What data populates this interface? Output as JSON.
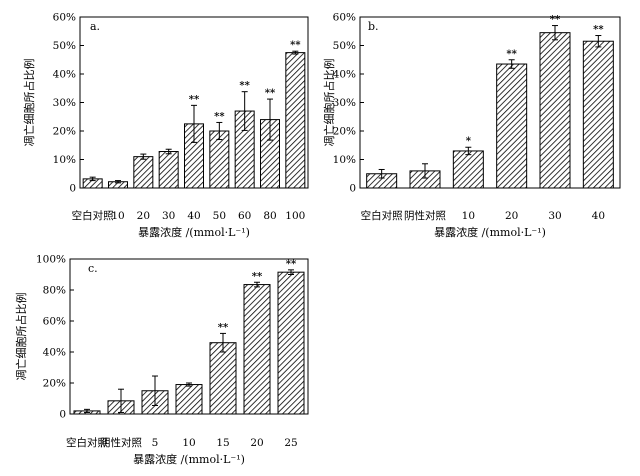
{
  "chart_data": [
    {
      "type": "bar",
      "panel_label": "a.",
      "categories": [
        "空白对照",
        "10",
        "20",
        "30",
        "40",
        "50",
        "60",
        "80",
        "100"
      ],
      "values": [
        3.2,
        2.2,
        11,
        12.8,
        22.5,
        20,
        27,
        24,
        47.5
      ],
      "errors": [
        0.6,
        0.4,
        0.9,
        0.8,
        6.5,
        3,
        6.8,
        7.2,
        0.5
      ],
      "significance": [
        "",
        "",
        "",
        "",
        "**",
        "**",
        "**",
        "**",
        "**"
      ],
      "yticks": [
        "0",
        "10%",
        "20%",
        "30%",
        "40%",
        "50%",
        "60%"
      ],
      "ylim": [
        0,
        60
      ],
      "ylabel": "凋亡细胞所占比例",
      "xlabel": "暴露浓度 /(mmol·L⁻¹)",
      "hatch": "diagonal"
    },
    {
      "type": "bar",
      "panel_label": "b.",
      "categories": [
        "空白对照",
        "阴性对照",
        "10",
        "20",
        "30",
        "40"
      ],
      "values": [
        5,
        6,
        13,
        43.5,
        54.5,
        51.5
      ],
      "errors": [
        1.5,
        2.5,
        1.3,
        1.5,
        2.5,
        2
      ],
      "significance": [
        "",
        "",
        "*",
        "**",
        "**",
        "**"
      ],
      "yticks": [
        "0",
        "10%",
        "20%",
        "30%",
        "40%",
        "50%",
        "60%"
      ],
      "ylim": [
        0,
        60
      ],
      "ylabel": "凋亡细胞所占比例",
      "xlabel": "暴露浓度 /(mmol·L⁻¹)",
      "hatch": "diagonal"
    },
    {
      "type": "bar",
      "panel_label": "c.",
      "categories": [
        "空白对照",
        "阴性对照",
        "5",
        "10",
        "15",
        "20",
        "25"
      ],
      "values": [
        2,
        8.5,
        15,
        19,
        46,
        83.5,
        91.5
      ],
      "errors": [
        1,
        7.5,
        9.5,
        1,
        6,
        1.5,
        1.5
      ],
      "significance": [
        "",
        "",
        "",
        "",
        "**",
        "**",
        "**"
      ],
      "yticks": [
        "0",
        "20%",
        "40%",
        "60%",
        "80%",
        "100%"
      ],
      "ylim": [
        0,
        100
      ],
      "ylabel": "凋亡细胞所占比例",
      "xlabel": "暴露浓度 /(mmol·L⁻¹)",
      "hatch": "diagonal"
    }
  ]
}
